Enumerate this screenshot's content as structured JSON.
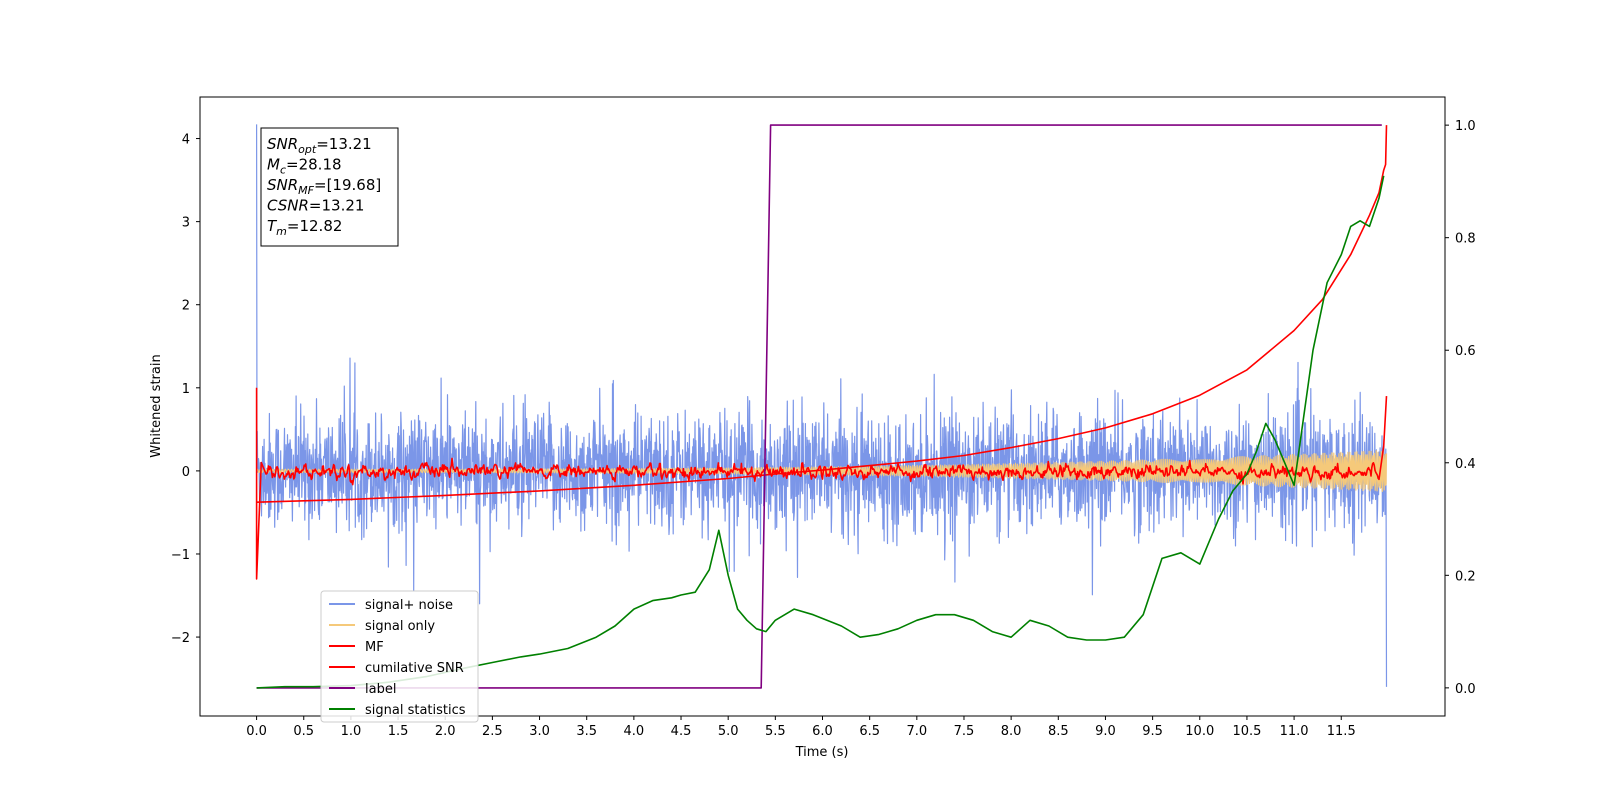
{
  "chart_data": {
    "type": "line",
    "title": "",
    "xlabel": "Time (s)",
    "ylabel": "Whitened strain",
    "xlim": [
      -0.6,
      12.6
    ],
    "ylim": [
      -2.95,
      4.5
    ],
    "y2lim": [
      -0.05,
      1.05
    ],
    "xticks": [
      "0.0",
      "0.5",
      "1.0",
      "1.5",
      "2.0",
      "2.5",
      "3.0",
      "3.5",
      "4.0",
      "4.5",
      "5.0",
      "5.5",
      "6.0",
      "6.5",
      "7.0",
      "7.5",
      "8.0",
      "8.5",
      "9.0",
      "9.5",
      "10.0",
      "10.5",
      "11.0",
      "11.5"
    ],
    "yticks": [
      "−2",
      "−1",
      "0",
      "1",
      "2",
      "3",
      "4"
    ],
    "y2ticks": [
      "0.0",
      "0.2",
      "0.4",
      "0.6",
      "0.8",
      "1.0"
    ],
    "annotation": {
      "lines": [
        {
          "base": "SNR",
          "sub": "opt",
          "value": "=13.21"
        },
        {
          "base": "M",
          "sub": "c",
          "value": "=28.18"
        },
        {
          "base": "SNR",
          "sub": "MF",
          "value": "=[19.68]"
        },
        {
          "base": "CSNR",
          "sub": "",
          "value": "=13.21"
        },
        {
          "base": "T",
          "sub": "m",
          "value": "=12.82"
        }
      ]
    },
    "legend": {
      "position": "lower-left",
      "entries": [
        {
          "label": "signal+ noise",
          "color": "#7b96e8"
        },
        {
          "label": "signal only",
          "color": "#f5c97a"
        },
        {
          "label": "MF",
          "color": "#ff0000"
        },
        {
          "label": "cumilative SNR",
          "color": "#ff0000"
        },
        {
          "label": "label",
          "color": "#800080"
        },
        {
          "label": "signal statistics",
          "color": "#008000"
        }
      ]
    },
    "series": [
      {
        "name": "signal+ noise",
        "axis": "left",
        "color": "#7b96e8",
        "style": "noise",
        "x_range": [
          0,
          11.98
        ],
        "amplitude_typical": 0.55,
        "amplitude_peak": 1.6,
        "spikes": [
          {
            "x": 0.0,
            "y": 4.17
          },
          {
            "x": 11.98,
            "y": -2.6
          }
        ]
      },
      {
        "name": "signal only",
        "axis": "left",
        "color": "#f5c97a",
        "style": "chirp",
        "x_range": [
          0,
          11.98
        ],
        "amplitude_start": 0.02,
        "amplitude_end": 0.25
      },
      {
        "name": "MF",
        "axis": "left",
        "color": "#ff0000",
        "style": "mf",
        "x_range": [
          0,
          11.98
        ],
        "points": [
          [
            0.0,
            1.0
          ],
          [
            0.0,
            -1.3
          ],
          [
            0.05,
            0.1
          ],
          [
            0.1,
            -0.05
          ],
          [
            11.9,
            0.05
          ],
          [
            11.98,
            0.9
          ]
        ]
      },
      {
        "name": "cumilative SNR",
        "axis": "right",
        "color": "#ff0000",
        "x": [
          0.0,
          1.0,
          2.0,
          3.0,
          4.0,
          5.0,
          5.5,
          6.0,
          6.5,
          7.0,
          7.5,
          8.0,
          8.5,
          9.0,
          9.5,
          10.0,
          10.5,
          11.0,
          11.3,
          11.6,
          11.8,
          11.9,
          11.95,
          11.97,
          11.98
        ],
        "y": [
          0.33,
          0.335,
          0.342,
          0.35,
          0.36,
          0.372,
          0.38,
          0.387,
          0.395,
          0.403,
          0.413,
          0.427,
          0.443,
          0.462,
          0.487,
          0.52,
          0.565,
          0.635,
          0.69,
          0.77,
          0.84,
          0.88,
          0.92,
          0.93,
          1.0
        ]
      },
      {
        "name": "label",
        "axis": "right",
        "color": "#800080",
        "x": [
          0.0,
          5.35,
          5.45,
          11.93
        ],
        "y": [
          0.0,
          0.0,
          1.0,
          1.0
        ]
      },
      {
        "name": "signal statistics",
        "axis": "right",
        "color": "#008000",
        "x": [
          0.0,
          0.3,
          0.6,
          1.0,
          1.4,
          1.8,
          2.2,
          2.5,
          2.8,
          3.0,
          3.3,
          3.6,
          3.8,
          4.0,
          4.2,
          4.4,
          4.5,
          4.65,
          4.8,
          4.9,
          5.0,
          5.1,
          5.2,
          5.3,
          5.4,
          5.5,
          5.7,
          5.9,
          6.2,
          6.4,
          6.6,
          6.8,
          7.0,
          7.2,
          7.4,
          7.6,
          7.8,
          8.0,
          8.2,
          8.4,
          8.6,
          8.8,
          9.0,
          9.2,
          9.4,
          9.6,
          9.8,
          10.0,
          10.2,
          10.35,
          10.5,
          10.6,
          10.7,
          10.8,
          10.9,
          11.0,
          11.2,
          11.35,
          11.5,
          11.6,
          11.7,
          11.8,
          11.9,
          11.95
        ],
        "y": [
          0.0,
          0.002,
          0.002,
          0.004,
          0.01,
          0.02,
          0.035,
          0.045,
          0.055,
          0.06,
          0.07,
          0.09,
          0.11,
          0.14,
          0.155,
          0.16,
          0.165,
          0.17,
          0.21,
          0.28,
          0.2,
          0.14,
          0.12,
          0.105,
          0.1,
          0.12,
          0.14,
          0.13,
          0.11,
          0.09,
          0.095,
          0.105,
          0.12,
          0.13,
          0.13,
          0.12,
          0.1,
          0.09,
          0.12,
          0.11,
          0.09,
          0.085,
          0.085,
          0.09,
          0.13,
          0.23,
          0.24,
          0.22,
          0.3,
          0.35,
          0.38,
          0.42,
          0.47,
          0.44,
          0.4,
          0.36,
          0.6,
          0.72,
          0.77,
          0.82,
          0.83,
          0.82,
          0.87,
          0.91
        ]
      }
    ]
  }
}
